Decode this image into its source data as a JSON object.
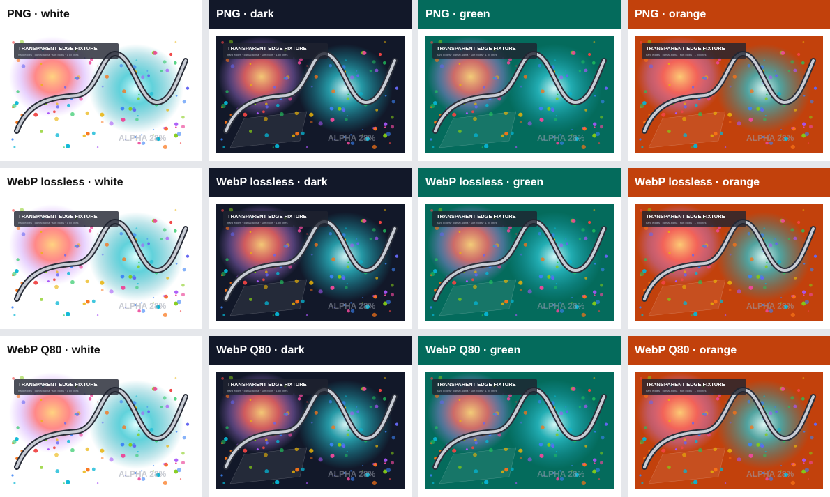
{
  "panels": [
    {
      "title": "PNG · white",
      "background": "#ffffff"
    },
    {
      "title": "PNG · dark",
      "background": "#121829"
    },
    {
      "title": "PNG · green",
      "background": "#046b5c"
    },
    {
      "title": "PNG · orange",
      "background": "#c2410c"
    },
    {
      "title": "WebP lossless · white",
      "background": "#ffffff"
    },
    {
      "title": "WebP lossless · dark",
      "background": "#121829"
    },
    {
      "title": "WebP lossless · green",
      "background": "#046b5c"
    },
    {
      "title": "WebP lossless · orange",
      "background": "#c2410c"
    },
    {
      "title": "WebP Q80 · white",
      "background": "#ffffff"
    },
    {
      "title": "WebP Q80 · dark",
      "background": "#121829"
    },
    {
      "title": "WebP Q80 · green",
      "background": "#046b5c"
    },
    {
      "title": "WebP Q80 · orange",
      "background": "#c2410c"
    }
  ],
  "fixture": {
    "title": "TRANSPARENT EDGE FIXTURE",
    "subtitle": "hard edges · partial alpha · soft blobs · 1 px lines",
    "alpha_label": "ALPHA 28%"
  }
}
